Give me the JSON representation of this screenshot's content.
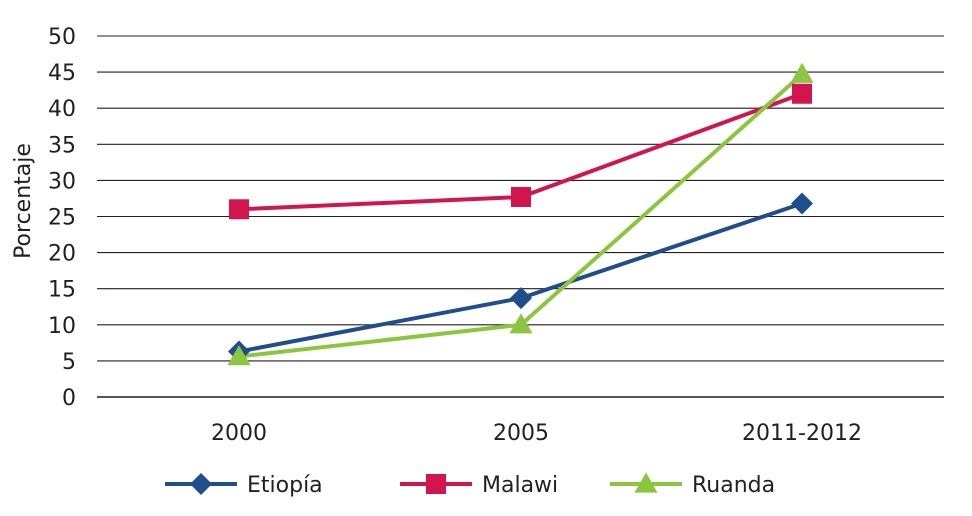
{
  "chart_data": {
    "type": "line",
    "title": "",
    "xlabel": "",
    "ylabel": "Porcentaje",
    "categories": [
      "2000",
      "2005",
      "2011-2012"
    ],
    "ylim": [
      0,
      50
    ],
    "yticks": [
      "0",
      "5",
      "10",
      "15",
      "20",
      "25",
      "30",
      "35",
      "40",
      "45",
      "50"
    ],
    "grid": true,
    "legend_position": "bottom",
    "series": [
      {
        "name": "Etiopía",
        "marker": "diamond",
        "color": "#1f4e8c",
        "values": [
          6.3,
          13.7,
          26.8
        ]
      },
      {
        "name": "Malawi",
        "marker": "square",
        "color": "#d3154f",
        "values": [
          26,
          27.7,
          42
        ]
      },
      {
        "name": "Ruanda",
        "marker": "triangle",
        "color": "#8cc63f",
        "values": [
          5.6,
          10,
          44.7
        ]
      }
    ]
  }
}
